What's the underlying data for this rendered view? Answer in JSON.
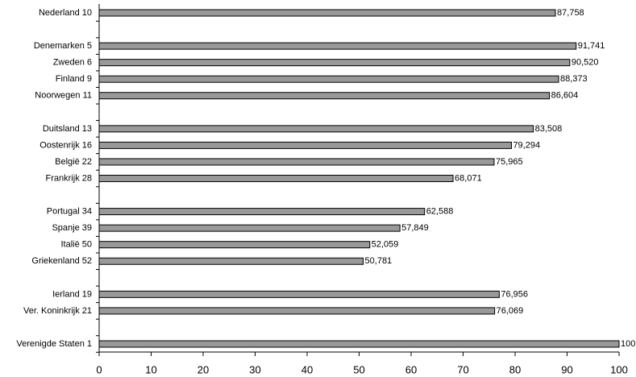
{
  "chart_data": {
    "type": "bar",
    "orientation": "horizontal",
    "categories": [
      "Nederland 10",
      null,
      "Denemarken 5",
      "Zweden 6",
      "Finland 9",
      "Noorwegen 11",
      null,
      "Duitsland 13",
      "Oostenrijk 16",
      "België 22",
      "Frankrijk 28",
      null,
      "Portugal 34",
      "Spanje 39",
      "Italië 50",
      "Griekenland 52",
      null,
      "Ierland 19",
      "Ver. Koninkrijk 21",
      null,
      "Verenigde Staten 1"
    ],
    "values": [
      87.758,
      null,
      91.741,
      90.52,
      88.373,
      86.604,
      null,
      83.508,
      79.294,
      75.965,
      68.071,
      null,
      62.588,
      57.849,
      52.059,
      50.781,
      null,
      76.956,
      76.069,
      null,
      100
    ],
    "value_labels": [
      "87,758",
      null,
      "91,741",
      "90,520",
      "88,373",
      "86,604",
      null,
      "83,508",
      "79,294",
      "75,965",
      "68,071",
      null,
      "62,588",
      "57,849",
      "52,059",
      "50,781",
      null,
      "76,956",
      "76,069",
      null,
      "100"
    ],
    "color": "#999999",
    "xlim": [
      0,
      100
    ],
    "xticks": [
      0,
      10,
      20,
      30,
      40,
      50,
      60,
      70,
      80,
      90,
      100
    ],
    "grid": false
  }
}
